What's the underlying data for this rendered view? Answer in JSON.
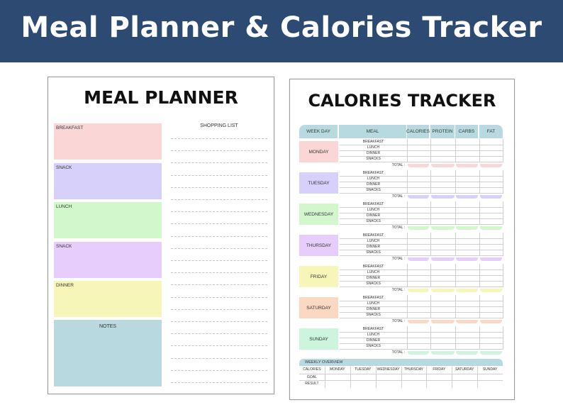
{
  "banner": {
    "title": "Meal Planner & Calories Tracker"
  },
  "meal_planner": {
    "title": "MEAL PLANNER",
    "sections": [
      {
        "label": "BREAKFAST",
        "color": "#fbd6d6"
      },
      {
        "label": "SNACK",
        "color": "#d6d0fb"
      },
      {
        "label": "LUNCH",
        "color": "#d2f7cd"
      },
      {
        "label": "SNACK",
        "color": "#e7cdfb"
      },
      {
        "label": "DINNER",
        "color": "#f6f6b8"
      }
    ],
    "notes_label": "NOTES",
    "notes_color": "#b7d9df",
    "shopping_list_label": "SHOPPING LIST"
  },
  "calories_tracker": {
    "title": "CALORIES TRACKER",
    "headers": [
      "WEEK DAY",
      "MEAL",
      "CALORIES",
      "PROTEIN",
      "CARBS",
      "FAT"
    ],
    "meals": [
      "BREAKFAST",
      "LUNCH",
      "DINNER",
      "SNACKS"
    ],
    "total_label": "TOTAL :",
    "days": [
      {
        "name": "MONDAY",
        "color": "#fbd6d6"
      },
      {
        "name": "TUESDAY",
        "color": "#d6d0fb"
      },
      {
        "name": "WEDNESDAY",
        "color": "#d2f7cd"
      },
      {
        "name": "THURSDAY",
        "color": "#e7cdfb"
      },
      {
        "name": "FRIDAY",
        "color": "#f6f6b8"
      },
      {
        "name": "SATURDAY",
        "color": "#fbd8c2"
      },
      {
        "name": "SUNDAY",
        "color": "#cdf4dc"
      }
    ],
    "weekly_overview": {
      "title": "WEEKLY OVERVIEW",
      "columns": [
        "CALORIES",
        "MONDAY",
        "TUESDAY",
        "WEDNESDAY",
        "THURSDAY",
        "FRIDAY",
        "SATURDAY",
        "SUNDAY"
      ],
      "rows": [
        "GOAL",
        "RESULT"
      ]
    }
  }
}
